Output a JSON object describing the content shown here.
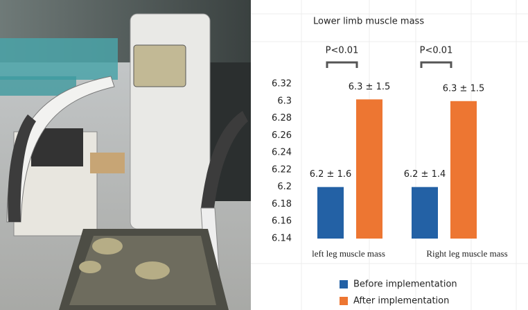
{
  "chart_data": {
    "type": "bar",
    "title": "Lower limb muscle mass",
    "categories": [
      "left leg muscle mass",
      "Right leg muscle mass"
    ],
    "series": [
      {
        "name": "Before implementation",
        "color": "#2361a5",
        "values": [
          6.2,
          6.2
        ],
        "value_labels": [
          "6.2 ± 1.6",
          "6.2 ± 1.4"
        ]
      },
      {
        "name": "After implementation",
        "color": "#ed7632",
        "values": [
          6.302,
          6.3
        ],
        "value_labels": [
          "6.3 ± 1.5",
          "6.3 ± 1.5"
        ]
      }
    ],
    "annotations": [
      "P<0.01",
      "P<0.01"
    ],
    "ylim": [
      6.14,
      6.32
    ],
    "yticks": [
      6.14,
      6.16,
      6.18,
      6.2,
      6.22,
      6.24,
      6.26,
      6.28,
      6.3,
      6.32
    ],
    "grid": false
  }
}
